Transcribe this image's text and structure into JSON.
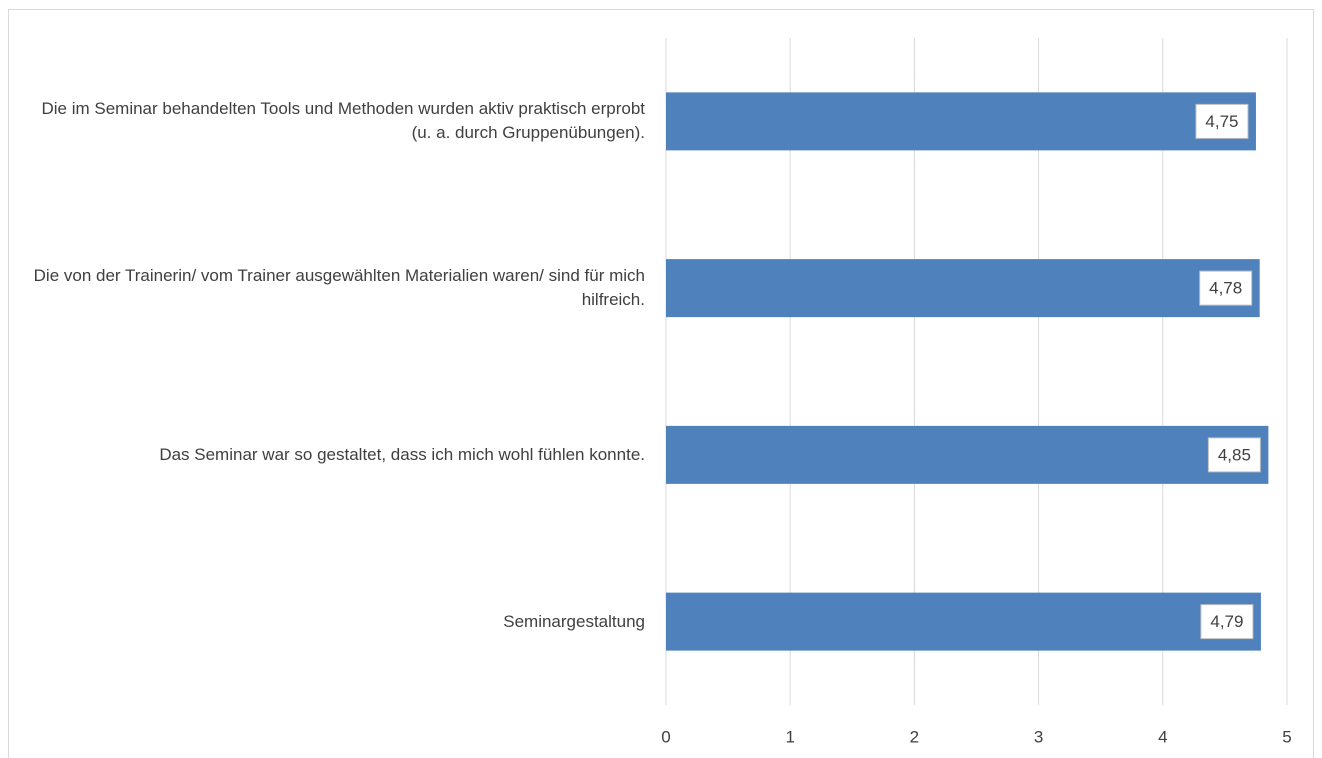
{
  "chart_data": {
    "type": "barh",
    "categories": [
      "Die im Seminar behandelten Tools und Methoden wurden aktiv praktisch erprobt (u. a. durch Gruppenübungen).",
      "Die von der Trainerin/ vom Trainer ausgewählten Materialien waren/ sind für mich hilfreich.",
      "Das Seminar war so gestaltet, dass ich mich wohl fühlen konnte.",
      "Seminargestaltung"
    ],
    "values": [
      4.75,
      4.78,
      4.85,
      4.79
    ],
    "value_labels": [
      "4,75",
      "4,78",
      "4,85",
      "4,79"
    ],
    "color": "#4f81bd",
    "xlim": [
      0,
      5
    ],
    "xticks": [
      0,
      1,
      2,
      3,
      4,
      5
    ],
    "grid": true
  }
}
